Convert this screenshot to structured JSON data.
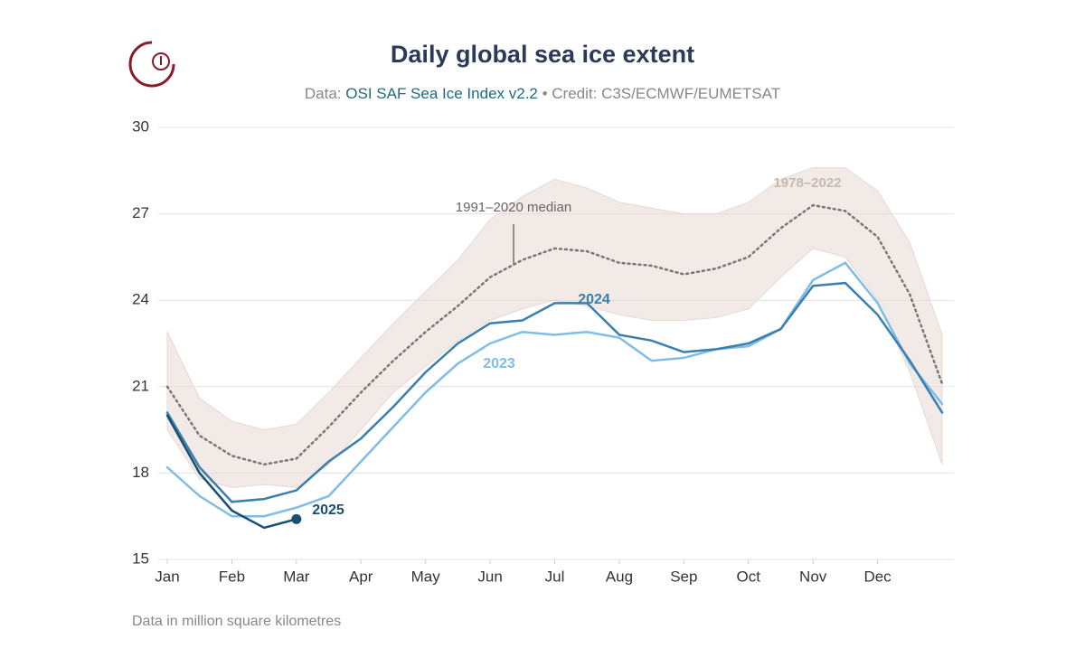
{
  "chart_data": {
    "type": "line",
    "title": "Daily global sea ice extent",
    "subtitle": {
      "prefix": "Data:",
      "source": "OSI SAF Sea Ice Index v2.2",
      "credit": "• Credit: C3S/ECMWF/EUMETSAT"
    },
    "note": "Data in million square kilometres",
    "x": [
      0,
      0.5,
      1,
      1.5,
      2,
      2.5,
      3,
      3.5,
      4,
      4.5,
      5,
      5.5,
      6,
      6.5,
      7,
      7.5,
      8,
      8.5,
      9,
      9.5,
      10,
      10.5,
      11,
      11.5,
      12
    ],
    "xlim": [
      0,
      12
    ],
    "xticks": [
      {
        "value": 0,
        "label": "Jan"
      },
      {
        "value": 1,
        "label": "Feb"
      },
      {
        "value": 2,
        "label": "Mar"
      },
      {
        "value": 3,
        "label": "Apr"
      },
      {
        "value": 4,
        "label": "May"
      },
      {
        "value": 5,
        "label": "Jun"
      },
      {
        "value": 6,
        "label": "Jul"
      },
      {
        "value": 7,
        "label": "Aug"
      },
      {
        "value": 8,
        "label": "Sep"
      },
      {
        "value": 9,
        "label": "Oct"
      },
      {
        "value": 10,
        "label": "Nov"
      },
      {
        "value": 11,
        "label": "Dec"
      }
    ],
    "ylim": [
      15,
      30
    ],
    "yticks": [
      15,
      18,
      21,
      24,
      27,
      30
    ],
    "grid": true,
    "band": {
      "name": "1978–2022",
      "color": "#e6d9d4",
      "low": [
        19.5,
        17.8,
        17.5,
        17.6,
        17.5,
        18.3,
        19.5,
        20.8,
        21.7,
        22.6,
        23.3,
        23.7,
        24.0,
        23.8,
        23.5,
        23.3,
        23.3,
        23.4,
        23.7,
        24.8,
        25.8,
        25.5,
        24.0,
        21.5,
        18.3
      ],
      "high": [
        22.9,
        20.6,
        19.8,
        19.5,
        19.7,
        20.8,
        22.0,
        23.2,
        24.3,
        25.4,
        26.8,
        27.6,
        28.2,
        27.9,
        27.4,
        27.2,
        27.0,
        27.0,
        27.4,
        28.2,
        28.6,
        28.6,
        27.8,
        26.0,
        22.8
      ]
    },
    "series": [
      {
        "name": "1991–2020 median",
        "color": "#777777",
        "dash": true,
        "values": [
          21.0,
          19.3,
          18.6,
          18.3,
          18.5,
          19.6,
          20.8,
          21.9,
          22.9,
          23.8,
          24.8,
          25.4,
          25.8,
          25.7,
          25.3,
          25.2,
          24.9,
          25.1,
          25.5,
          26.5,
          27.3,
          27.1,
          26.2,
          24.2,
          21.1
        ]
      },
      {
        "name": "2023",
        "color": "#7fbde6",
        "values": [
          18.2,
          17.2,
          16.5,
          16.5,
          16.8,
          17.2,
          18.4,
          19.6,
          20.8,
          21.8,
          22.5,
          22.9,
          22.8,
          22.9,
          22.7,
          21.9,
          22.0,
          22.3,
          22.4,
          23.0,
          24.7,
          25.3,
          23.9,
          21.8,
          20.4
        ]
      },
      {
        "name": "2024",
        "color": "#3a7fad",
        "values": [
          20.1,
          18.2,
          17.0,
          17.1,
          17.4,
          18.4,
          19.2,
          20.3,
          21.5,
          22.5,
          23.2,
          23.3,
          23.9,
          23.9,
          22.8,
          22.6,
          22.2,
          22.3,
          22.5,
          23.0,
          24.5,
          24.6,
          23.5,
          21.9,
          20.1
        ]
      },
      {
        "name": "2025",
        "color": "#1a4f72",
        "values": [
          20.0,
          18.0,
          16.7,
          16.1,
          16.4,
          null,
          null,
          null,
          null,
          null,
          null,
          null,
          null,
          null,
          null,
          null,
          null,
          null,
          null,
          null,
          null,
          null,
          null,
          null,
          null
        ]
      }
    ]
  }
}
